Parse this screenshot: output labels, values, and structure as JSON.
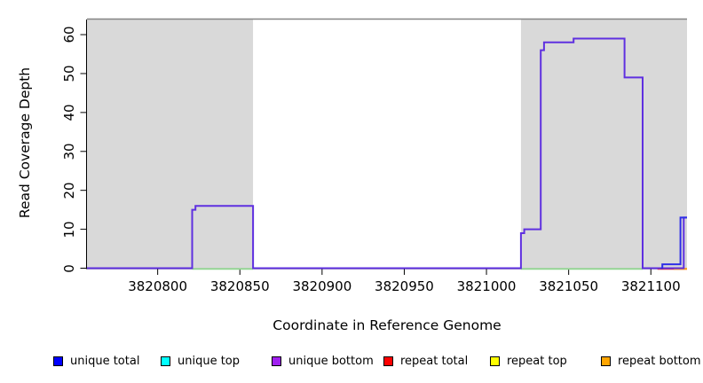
{
  "y_axis": {
    "label": "Read Coverage Depth"
  },
  "x_axis": {
    "label": "Coordinate in Reference Genome"
  },
  "legend": {
    "items": [
      {
        "label": "unique total",
        "color": "#0000ff"
      },
      {
        "label": "unique top",
        "color": "#00ffff"
      },
      {
        "label": "unique bottom",
        "color": "#a020f0"
      },
      {
        "label": "repeat total",
        "color": "#ff0000"
      },
      {
        "label": "repeat top",
        "color": "#ffff00"
      },
      {
        "label": "repeat bottom",
        "color": "#ffa500"
      }
    ]
  },
  "chart_data": {
    "type": "line",
    "step": true,
    "title": "",
    "xlabel": "Coordinate in Reference Genome",
    "ylabel": "Read Coverage Depth",
    "xlim": [
      3820757,
      3821122
    ],
    "ylim": [
      0,
      64
    ],
    "x_ticks": [
      3820800,
      3820850,
      3820900,
      3820950,
      3821000,
      3821050,
      3821100
    ],
    "y_ticks": [
      0,
      10,
      20,
      30,
      40,
      50,
      60
    ],
    "grid": false,
    "legend_position": "bottom",
    "region_color": "#d9d9d9",
    "top_border_color": "#858585",
    "shaded_regions": [
      {
        "from": 3820757,
        "to": 3820858
      },
      {
        "from": 3821021,
        "to": 3821122
      }
    ],
    "series": [
      {
        "name": "unique bottom over unique total (overlapping step trace)",
        "color": "#5f30e0",
        "width": 2,
        "points": [
          [
            3820757,
            0
          ],
          [
            3820821,
            15
          ],
          [
            3820823,
            16
          ],
          [
            3820858,
            0
          ],
          [
            3821021,
            9
          ],
          [
            3821023,
            10
          ],
          [
            3821033,
            56
          ],
          [
            3821035,
            58
          ],
          [
            3821053,
            59
          ],
          [
            3821084,
            49
          ],
          [
            3821095,
            0
          ],
          [
            3821120,
            13
          ]
        ]
      },
      {
        "name": "unique total (right-edge steps)",
        "color": "#2e2ee8",
        "width": 2,
        "points": [
          [
            3821106,
            0
          ],
          [
            3821107,
            1
          ],
          [
            3821118,
            13
          ]
        ]
      }
    ],
    "zero_depth_segments": [
      {
        "name": "zero-baseline-green",
        "color": "#8fd48f",
        "from": 3820821,
        "to": 3820858,
        "depth": 0
      },
      {
        "name": "zero-baseline-green",
        "color": "#8fd48f",
        "from": 3821021,
        "to": 3821095,
        "depth": 0
      },
      {
        "name": "zero-baseline-red",
        "color": "#e83030",
        "from": 3821104,
        "to": 3821122,
        "depth": 0
      },
      {
        "name": "zero-baseline-orange",
        "color": "#ffa500",
        "from": 3821114,
        "to": 3821122,
        "depth": 0
      }
    ]
  }
}
